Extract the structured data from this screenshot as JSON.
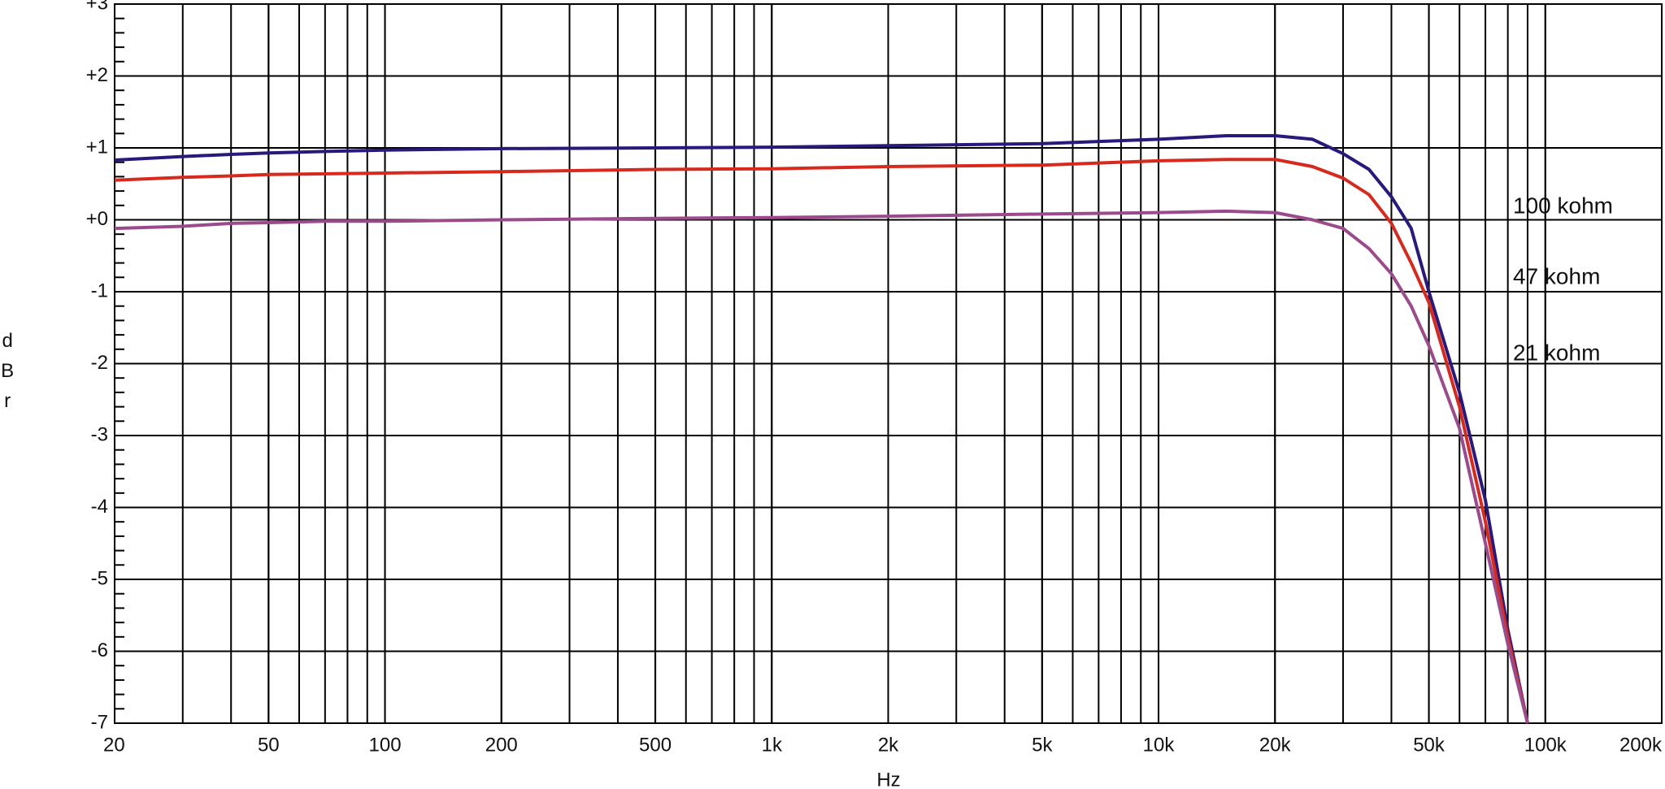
{
  "chart_data": {
    "type": "line",
    "xlabel": "Hz",
    "ylabel": "dBr",
    "log_x": true,
    "grid": true,
    "minor_grid": true,
    "x": [
      20,
      30,
      40,
      50,
      70,
      100,
      200,
      500,
      1000,
      2000,
      5000,
      10000,
      15000,
      20000,
      25000,
      30000,
      35000,
      40000,
      45000,
      50000,
      60000,
      70000,
      80000,
      90000
    ],
    "series": [
      {
        "name": "100 kohm",
        "color": "#28197a",
        "values": [
          0.83,
          0.88,
          0.91,
          0.93,
          0.95,
          0.97,
          0.99,
          1.0,
          1.01,
          1.03,
          1.06,
          1.12,
          1.17,
          1.17,
          1.12,
          0.92,
          0.7,
          0.32,
          -0.12,
          -1.0,
          -2.4,
          -3.9,
          -5.7,
          -7
        ]
      },
      {
        "name": "47 kohm",
        "color": "#d62a1f",
        "values": [
          0.55,
          0.59,
          0.61,
          0.63,
          0.64,
          0.65,
          0.67,
          0.7,
          0.71,
          0.74,
          0.76,
          0.82,
          0.84,
          0.84,
          0.74,
          0.58,
          0.35,
          -0.05,
          -0.6,
          -1.15,
          -2.6,
          -4.2,
          -5.8,
          -7
        ]
      },
      {
        "name": "21 kohm",
        "color": "#9b4a8c",
        "values": [
          -0.12,
          -0.09,
          -0.05,
          -0.04,
          -0.02,
          -0.02,
          0.0,
          0.02,
          0.03,
          0.05,
          0.08,
          0.1,
          0.12,
          0.1,
          0.0,
          -0.12,
          -0.4,
          -0.75,
          -1.2,
          -1.75,
          -2.9,
          -4.5,
          -5.9,
          -7
        ]
      }
    ],
    "xlim": [
      20,
      200000
    ],
    "xticks": [
      20,
      50,
      100,
      200,
      500,
      {
        "value": 1000,
        "label": "1k"
      },
      {
        "value": 2000,
        "label": "2k"
      },
      {
        "value": 5000,
        "label": "5k"
      },
      {
        "value": 10000,
        "label": "10k"
      },
      {
        "value": 20000,
        "label": "20k"
      },
      {
        "value": 50000,
        "label": "50k"
      },
      {
        "value": 100000,
        "label": "100k"
      },
      {
        "value": 200000,
        "label": "200k"
      }
    ],
    "ylim": [
      -7,
      3
    ],
    "yticks": [
      {
        "value": 3,
        "label": "+3"
      },
      {
        "value": 2,
        "label": "+2"
      },
      {
        "value": 1,
        "label": "+1"
      },
      {
        "value": 0,
        "label": "+0"
      },
      -1,
      -2,
      -3,
      -4,
      -5,
      -6,
      -7
    ]
  }
}
